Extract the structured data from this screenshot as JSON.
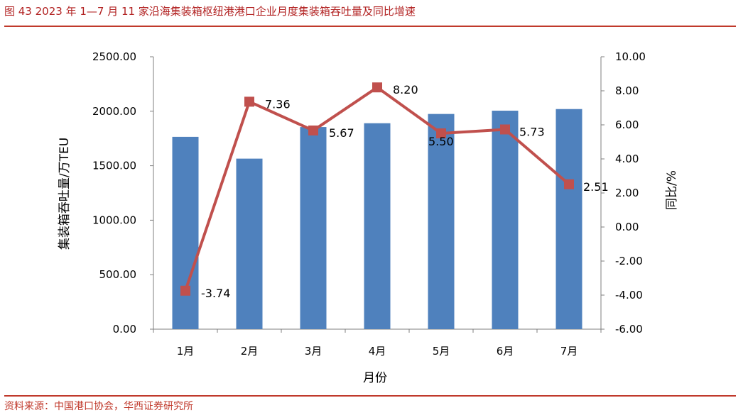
{
  "figure_title": "图 43   2023 年 1—7 月 11 家沿海集装箱枢纽港港口企业月度集装箱吞吐量及同比增速",
  "source": "资料来源：中国港口协会，华西证券研究所",
  "colors": {
    "bar": "#4f81bd",
    "line": "#c0504d",
    "accent_rule": "#c0392b"
  },
  "chart_data": {
    "type": "bar",
    "categories": [
      "1月",
      "2月",
      "3月",
      "4月",
      "5月",
      "6月",
      "7月"
    ],
    "series": [
      {
        "name": "",
        "type": "bar",
        "axis": "left",
        "values": [
          1765,
          1565,
          1855,
          1890,
          1975,
          2005,
          2020
        ]
      },
      {
        "name": "",
        "type": "line",
        "axis": "right",
        "values": [
          -3.74,
          7.36,
          5.67,
          8.2,
          5.5,
          5.73,
          2.51
        ]
      }
    ],
    "data_labels": [
      "-3.74",
      "7.36",
      "5.67",
      "8.20",
      "5.50",
      "5.73",
      "2.51"
    ],
    "xlabel": "月份",
    "ylabel_left": "集装箱吞吐量/万TEU",
    "ylabel_right": "同比/%",
    "ylim_left": [
      0,
      2500
    ],
    "ylim_right": [
      -6,
      10
    ],
    "yticks_left": [
      "0.00",
      "500.00",
      "1000.00",
      "1500.00",
      "2000.00",
      "2500.00"
    ],
    "yticks_right": [
      "-6.00",
      "-4.00",
      "-2.00",
      "0.00",
      "2.00",
      "4.00",
      "6.00",
      "8.00",
      "10.00"
    ],
    "grid": false,
    "legend": "none"
  }
}
